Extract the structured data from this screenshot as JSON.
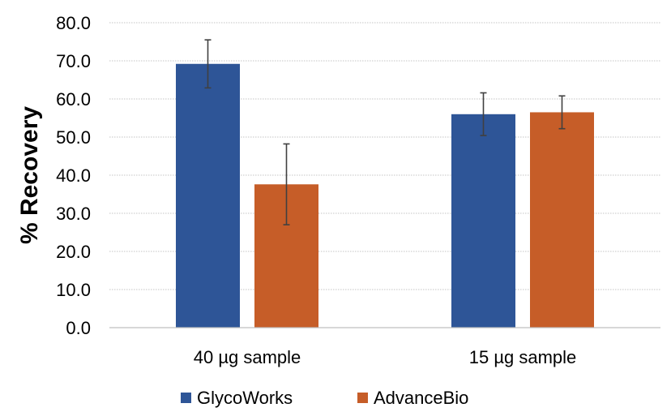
{
  "chart_data": {
    "type": "bar",
    "categories": [
      "40 µg sample",
      "15 µg sample"
    ],
    "series": [
      {
        "name": "GlycoWorks",
        "values": [
          69.2,
          56.0
        ],
        "errors": [
          6.3,
          5.6
        ],
        "color": "#2e5597"
      },
      {
        "name": "AdvanceBio",
        "values": [
          37.6,
          56.5
        ],
        "errors": [
          10.6,
          4.3
        ],
        "color": "#c65d28"
      }
    ],
    "title": "",
    "xlabel": "",
    "ylabel": "% Recovery",
    "ylim": [
      0,
      80
    ],
    "yticks": [
      "0.0",
      "10.0",
      "20.0",
      "30.0",
      "40.0",
      "50.0",
      "60.0",
      "70.0",
      "80.0"
    ],
    "grid": true,
    "legend_position": "bottom"
  }
}
